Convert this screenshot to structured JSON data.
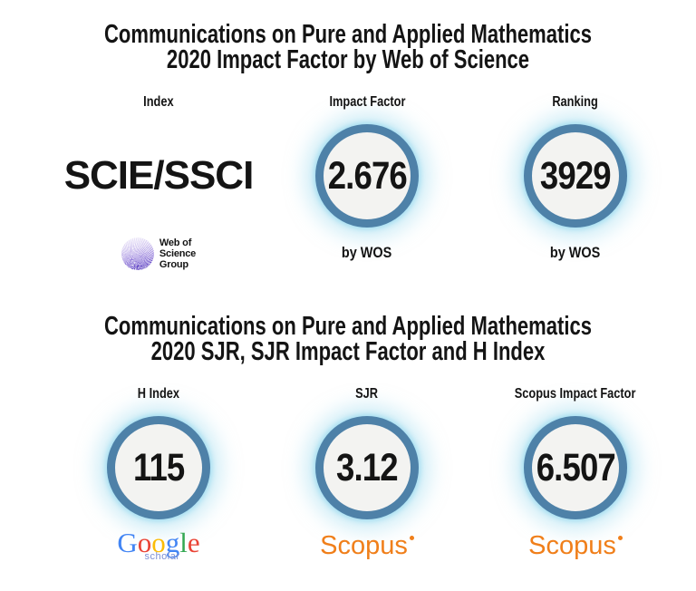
{
  "colors": {
    "ink": "#141414",
    "accent": "#4e81a8",
    "circle-fill": "#f3f3f1",
    "glow-strong": "rgba(158,220,240,0.9)",
    "glow-soft": "rgba(158,220,240,0.5)",
    "scopus-orange": "#f07f1a",
    "scholar-blue": "#7b8fd4",
    "wos-purple": "#6a4ec9"
  },
  "section1": {
    "title_line1": "Communications on Pure and Applied Mathematics",
    "title_line2": "2020 Impact Factor by Web of Science",
    "columns": [
      {
        "header": "Index",
        "value": "SCIE/SSCI",
        "logo": "web-of-science"
      },
      {
        "header": "Impact Factor",
        "value": "2.676",
        "caption": "by WOS"
      },
      {
        "header": "Ranking",
        "value": "3929",
        "caption": "by WOS"
      }
    ]
  },
  "section2": {
    "title_line1": "Communications on Pure and Applied Mathematics",
    "title_line2": "2020 SJR, SJR Impact Factor and H Index",
    "columns": [
      {
        "header": "H Index",
        "value": "115",
        "logo": "google-scholar"
      },
      {
        "header": "SJR",
        "value": "3.12",
        "logo": "scopus"
      },
      {
        "header": "Scopus Impact Factor",
        "value": "6.507",
        "logo": "scopus"
      }
    ]
  },
  "logos": {
    "web_of_science": {
      "lines": [
        "Web of",
        "Science",
        "Group"
      ]
    },
    "google_scholar": {
      "letters": [
        {
          "ch": "G",
          "color": "#4285f4"
        },
        {
          "ch": "o",
          "color": "#ea4335"
        },
        {
          "ch": "o",
          "color": "#fbbc05"
        },
        {
          "ch": "g",
          "color": "#4285f4"
        },
        {
          "ch": "l",
          "color": "#34a853"
        },
        {
          "ch": "e",
          "color": "#ea4335"
        }
      ],
      "sub": "scholar"
    },
    "scopus": {
      "text": "Scopus"
    }
  },
  "chart_data": [
    {
      "type": "table",
      "title": "Communications on Pure and Applied Mathematics 2020 Impact Factor by Web of Science",
      "columns": [
        "Index",
        "Impact Factor",
        "Ranking"
      ],
      "rows": [
        [
          "SCIE/SSCI",
          "2.676 by WOS",
          "3929 by WOS"
        ]
      ]
    },
    {
      "type": "table",
      "title": "Communications on Pure and Applied Mathematics 2020 SJR, SJR Impact Factor and H Index",
      "columns": [
        "H Index",
        "SJR",
        "Scopus Impact Factor"
      ],
      "rows": [
        [
          "115 (Google Scholar)",
          "3.12 (Scopus)",
          "6.507 (Scopus)"
        ]
      ]
    }
  ]
}
